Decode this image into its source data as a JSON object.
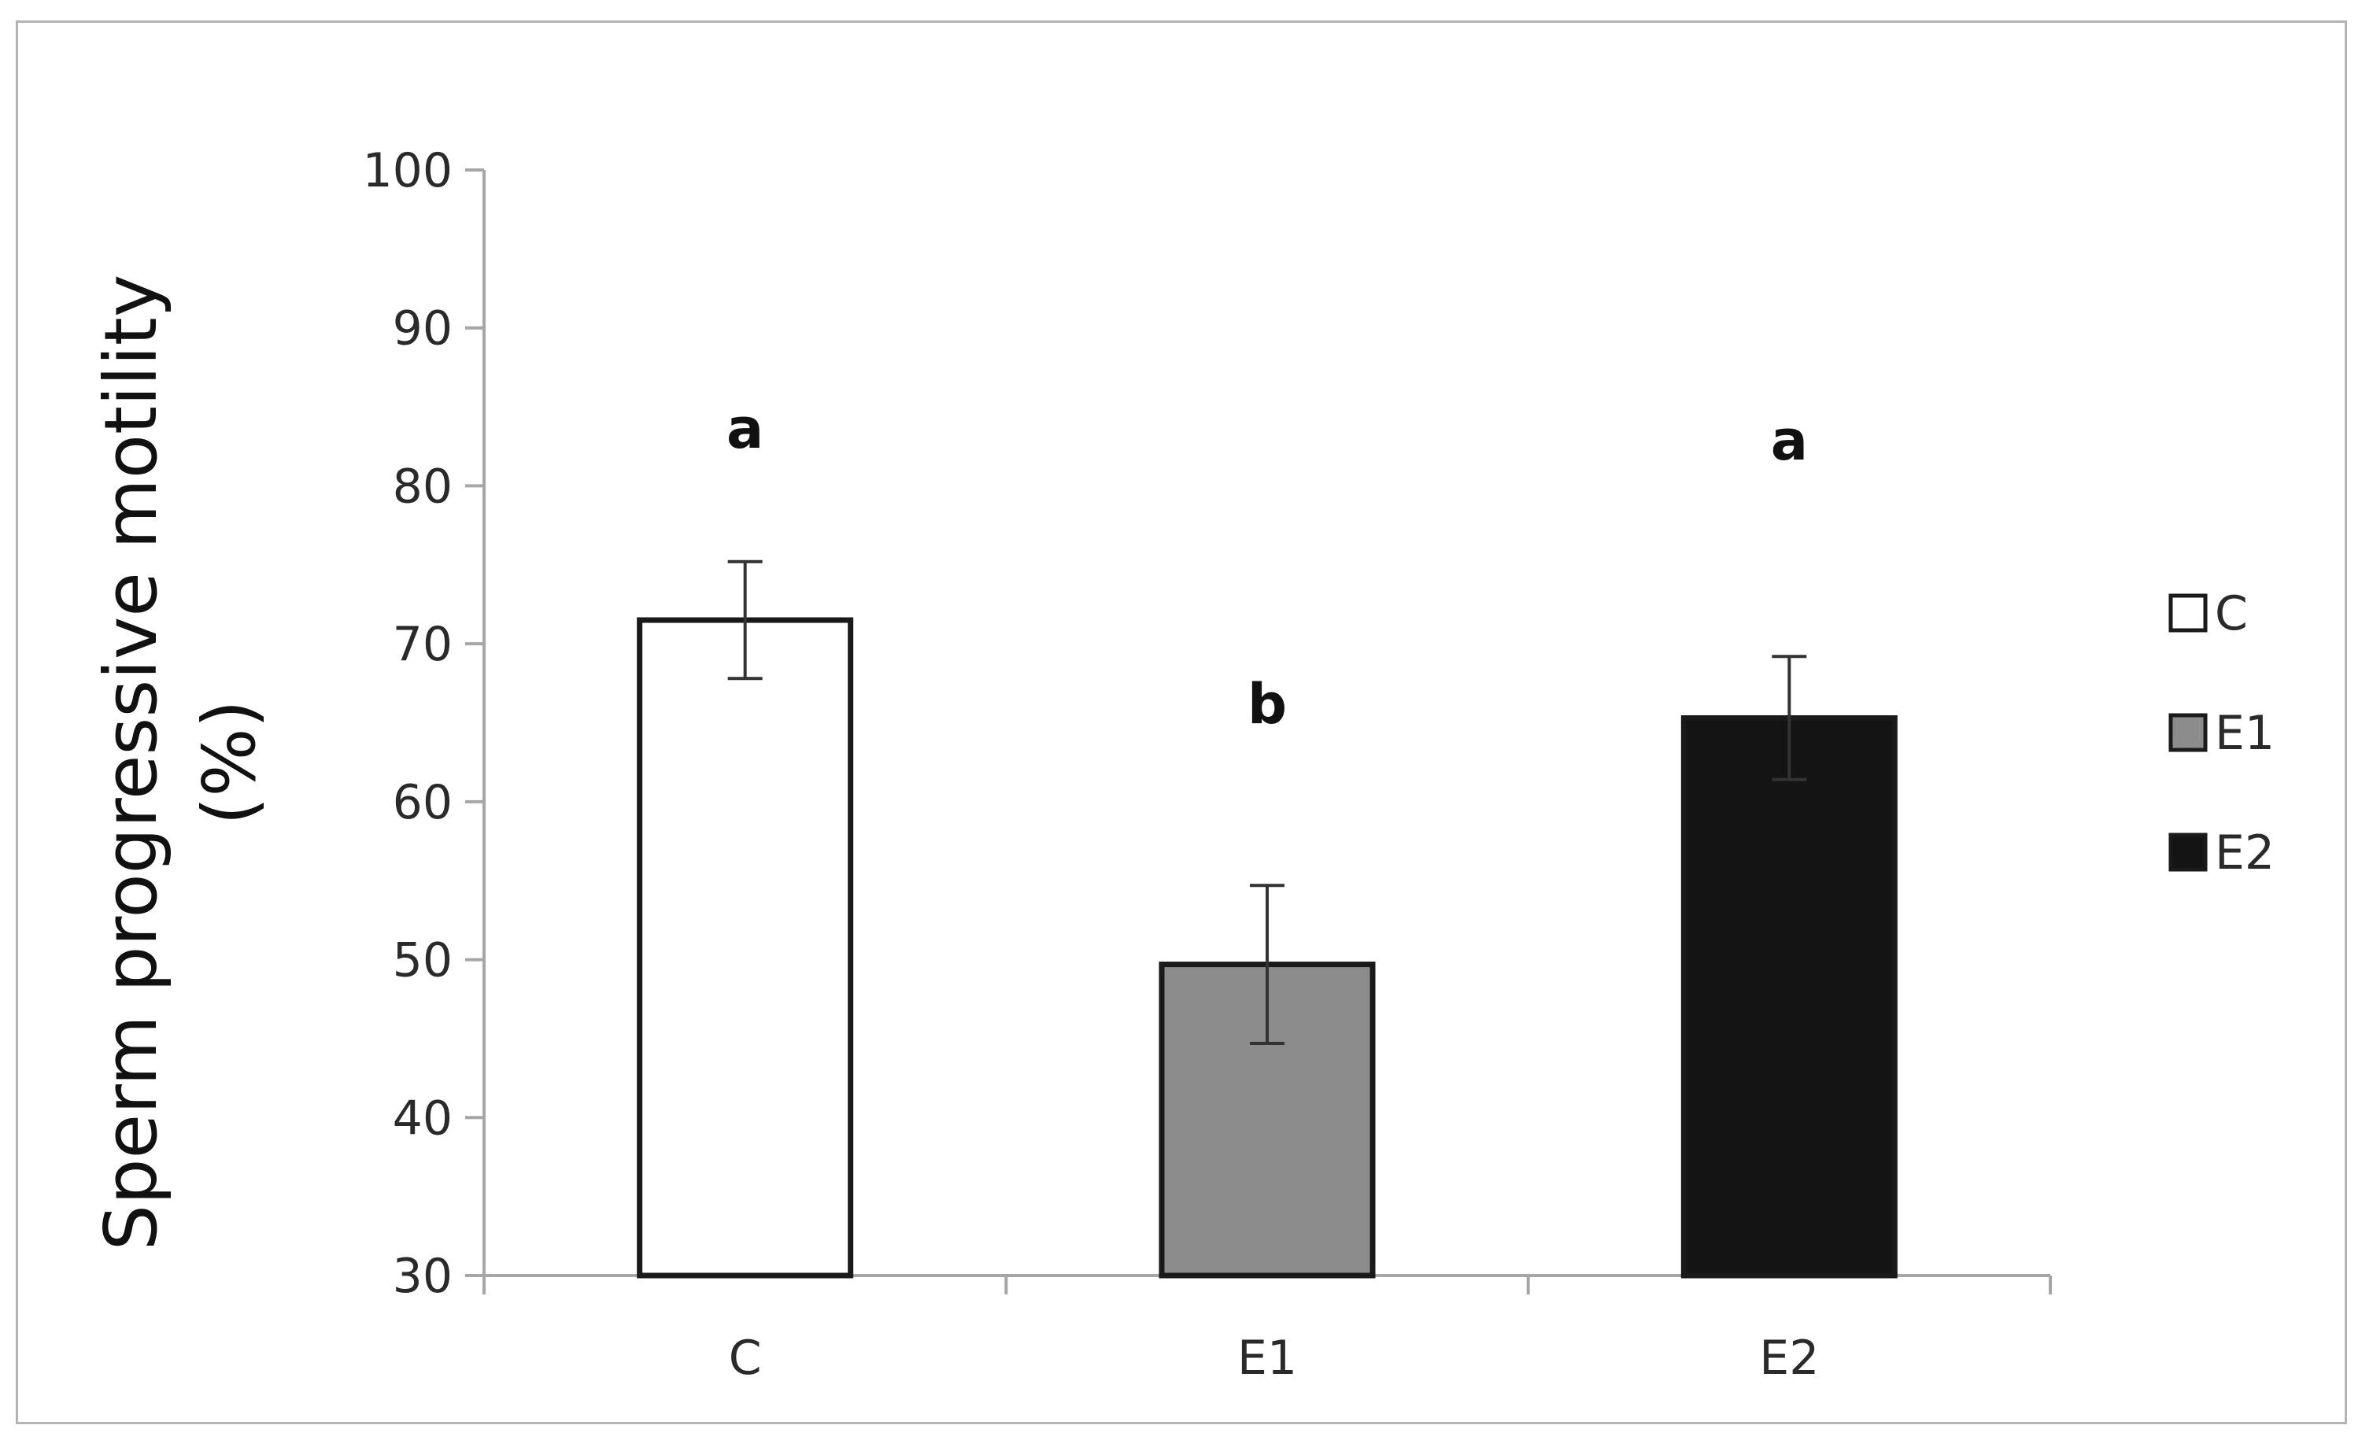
{
  "chart_data": {
    "type": "bar",
    "categories": [
      "C",
      "E1",
      "E2"
    ],
    "values": [
      71.5,
      49.7,
      65.3
    ],
    "errors": [
      3.7,
      5.0,
      3.9
    ],
    "significance": [
      "a",
      "b",
      "a"
    ],
    "colors": [
      "#ffffff",
      "#8c8c8c",
      "#141414"
    ],
    "ylabel_lines": [
      "Sperm progressive motility",
      "(%)"
    ],
    "xlabel": "",
    "ylim": [
      30,
      100
    ],
    "yticks": [
      30,
      40,
      50,
      60,
      70,
      80,
      90,
      100
    ],
    "legend": {
      "position": "right",
      "entries": [
        {
          "label": "C",
          "color": "#ffffff"
        },
        {
          "label": "E1",
          "color": "#8c8c8c"
        },
        {
          "label": "E2",
          "color": "#141414"
        }
      ]
    },
    "grid": false
  }
}
